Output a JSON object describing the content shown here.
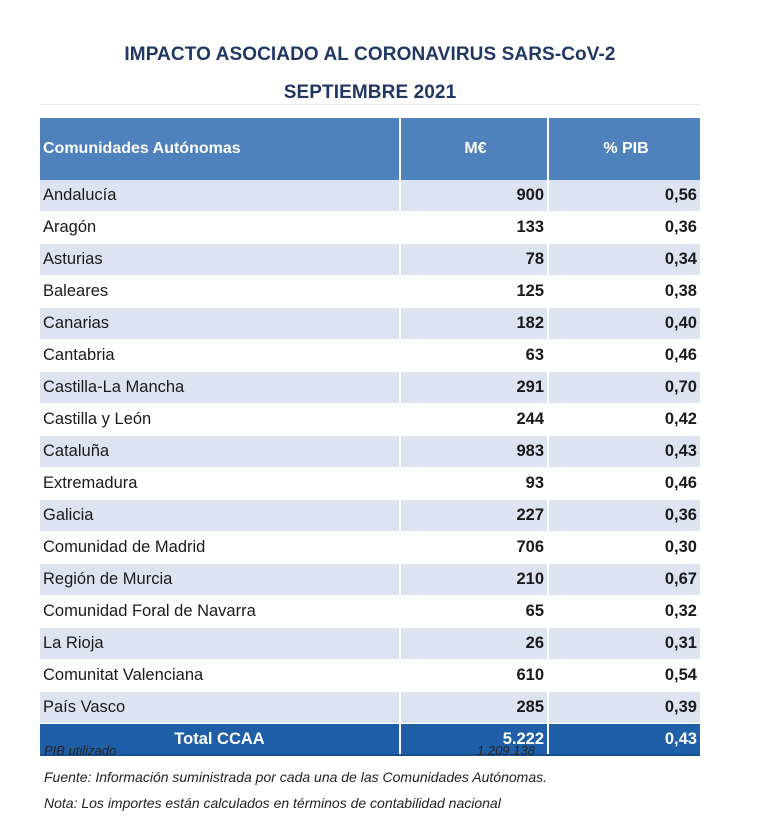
{
  "title": {
    "line1": "IMPACTO ASOCIADO AL CORONAVIRUS SARS-CoV-2",
    "line2": "SEPTIEMBRE 2021"
  },
  "table": {
    "headers": {
      "region": "Comunidades Autónomas",
      "meur": "M€",
      "pib": "% PIB"
    },
    "rows": [
      {
        "name": "Andalucía",
        "meur": "900",
        "pib": "0,56"
      },
      {
        "name": "Aragón",
        "meur": "133",
        "pib": "0,36"
      },
      {
        "name": "Asturias",
        "meur": "78",
        "pib": "0,34"
      },
      {
        "name": "Baleares",
        "meur": "125",
        "pib": "0,38"
      },
      {
        "name": "Canarias",
        "meur": "182",
        "pib": "0,40"
      },
      {
        "name": "Cantabria",
        "meur": "63",
        "pib": "0,46"
      },
      {
        "name": "Castilla-La Mancha",
        "meur": "291",
        "pib": "0,70"
      },
      {
        "name": "Castilla y León",
        "meur": "244",
        "pib": "0,42"
      },
      {
        "name": "Cataluña",
        "meur": "983",
        "pib": "0,43"
      },
      {
        "name": "Extremadura",
        "meur": "93",
        "pib": "0,46"
      },
      {
        "name": "Galicia",
        "meur": "227",
        "pib": "0,36"
      },
      {
        "name": "Comunidad de Madrid",
        "meur": "706",
        "pib": "0,30"
      },
      {
        "name": "Región de Murcia",
        "meur": "210",
        "pib": "0,67"
      },
      {
        "name": "Comunidad Foral de Navarra",
        "meur": "65",
        "pib": "0,32"
      },
      {
        "name": "La Rioja",
        "meur": "26",
        "pib": "0,31"
      },
      {
        "name": "Comunitat Valenciana",
        "meur": "610",
        "pib": "0,54"
      },
      {
        "name": "País Vasco",
        "meur": "285",
        "pib": "0,39"
      }
    ],
    "total": {
      "label": "Total CCAA",
      "meur": "5.222",
      "pib": "0,43"
    }
  },
  "colors": {
    "title": "#1f3864",
    "header_bg": "#4f81bd",
    "band_bg": "#dce4f1",
    "total_bg": "#1f5fa8"
  },
  "footnotes": {
    "pib_label": "PIB utilizado",
    "pib_value": "1.209.138",
    "fuente": "Fuente: Información suministrada por cada una de las Comunidades Autónomas.",
    "nota": "Nota: Los importes están calculados en términos de contabilidad nacional"
  }
}
